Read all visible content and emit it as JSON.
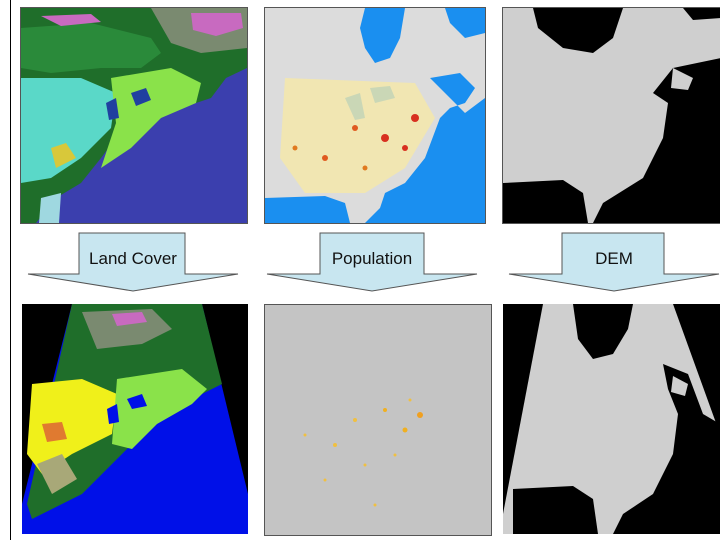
{
  "arrows": [
    {
      "label": "Land Cover"
    },
    {
      "label": "Population"
    },
    {
      "label": "DEM"
    }
  ],
  "colors": {
    "ocean_landcover": "#3b3fae",
    "ocean_population": "#1a8ff0",
    "land_population": "#dcdcdc",
    "dem_ocean": "#000000",
    "dem_land": "#cfcfcf",
    "arrow_fill": "#c8e6f0",
    "reprojected_ocean": "#0010e8"
  }
}
